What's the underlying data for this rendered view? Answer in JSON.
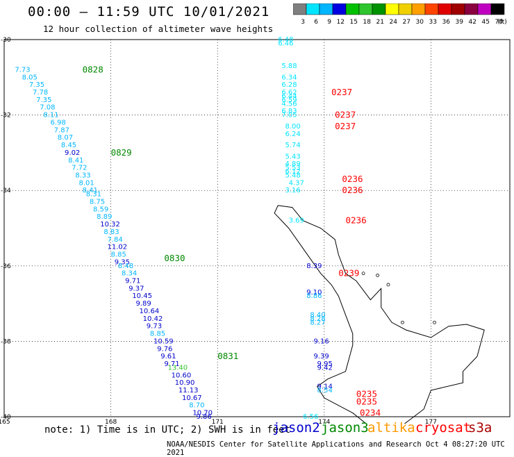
{
  "header": {
    "title": "00:00 – 11:59 UTC 10/01/2021",
    "subtitle": "12 hour collection of altimeter wave heights"
  },
  "colorbar": {
    "unit": "(ft)",
    "labels": [
      "3",
      "6",
      "9",
      "12",
      "15",
      "18",
      "21",
      "24",
      "27",
      "30",
      "33",
      "36",
      "39",
      "42",
      "45",
      "70"
    ],
    "colors": [
      "#7f7f7f",
      "#00e5ff",
      "#00b6ff",
      "#0000e0",
      "#00c000",
      "#2ec52e",
      "#009200",
      "#ffff00",
      "#f0d000",
      "#ffa000",
      "#ff4500",
      "#e00000",
      "#a00000",
      "#8b0040",
      "#c000c0",
      "#000000"
    ]
  },
  "map": {
    "lon_ticks": [
      "165",
      "168",
      "171",
      "174",
      "177"
    ],
    "lat_ticks": [
      "-30",
      "-32",
      "-34",
      "-36",
      "-38",
      "-40"
    ],
    "track_colors": {
      "jason2": "#0000cc",
      "jason3": "#008800",
      "altika": "#ff9900",
      "cryosat": "#ff0000",
      "s3a": "#aa0000"
    }
  },
  "observations": {
    "tracks": [
      {
        "label_color": "#008800",
        "times": [
          {
            "text": "0828",
            "lon": 167.2,
            "lat": -30.8
          },
          {
            "text": "0829",
            "lon": 168.0,
            "lat": -33.0
          },
          {
            "text": "0830",
            "lon": 169.5,
            "lat": -35.8
          },
          {
            "text": "0831",
            "lon": 171.0,
            "lat": -38.4
          }
        ],
        "points": [
          {
            "v": "7.73",
            "lon": 165.3,
            "lat": -30.8,
            "c": "#00b6ff"
          },
          {
            "v": "8.05",
            "lon": 165.5,
            "lat": -31.0,
            "c": "#00b6ff"
          },
          {
            "v": "7.35",
            "lon": 165.7,
            "lat": -31.2,
            "c": "#00b6ff"
          },
          {
            "v": "7.78",
            "lon": 165.8,
            "lat": -31.4,
            "c": "#00b6ff"
          },
          {
            "v": "7.35",
            "lon": 165.9,
            "lat": -31.6,
            "c": "#00b6ff"
          },
          {
            "v": "7.08",
            "lon": 166.0,
            "lat": -31.8,
            "c": "#00b6ff"
          },
          {
            "v": "8.11",
            "lon": 166.1,
            "lat": -32.0,
            "c": "#00b6ff"
          },
          {
            "v": "6.98",
            "lon": 166.3,
            "lat": -32.2,
            "c": "#00b6ff"
          },
          {
            "v": "7.87",
            "lon": 166.4,
            "lat": -32.4,
            "c": "#00b6ff"
          },
          {
            "v": "8.07",
            "lon": 166.5,
            "lat": -32.6,
            "c": "#00b6ff"
          },
          {
            "v": "8.45",
            "lon": 166.6,
            "lat": -32.8,
            "c": "#00b6ff"
          },
          {
            "v": "9.02",
            "lon": 166.7,
            "lat": -33.0,
            "c": "#0000cc"
          },
          {
            "v": "8.41",
            "lon": 166.8,
            "lat": -33.2,
            "c": "#00b6ff"
          },
          {
            "v": "7.72",
            "lon": 166.9,
            "lat": -33.4,
            "c": "#00b6ff"
          },
          {
            "v": "8.33",
            "lon": 167.0,
            "lat": -33.6,
            "c": "#00b6ff"
          },
          {
            "v": "8.01",
            "lon": 167.1,
            "lat": -33.8,
            "c": "#00b6ff"
          },
          {
            "v": "8.41",
            "lon": 167.2,
            "lat": -34.0,
            "c": "#00b6ff"
          },
          {
            "v": "8.31",
            "lon": 167.3,
            "lat": -34.1,
            "c": "#00b6ff"
          },
          {
            "v": "8.75",
            "lon": 167.4,
            "lat": -34.3,
            "c": "#00b6ff"
          },
          {
            "v": "8.59",
            "lon": 167.5,
            "lat": -34.5,
            "c": "#00b6ff"
          },
          {
            "v": "8.89",
            "lon": 167.6,
            "lat": -34.7,
            "c": "#00b6ff"
          },
          {
            "v": "10.32",
            "lon": 167.7,
            "lat": -34.9,
            "c": "#0000cc"
          },
          {
            "v": "8.83",
            "lon": 167.8,
            "lat": -35.1,
            "c": "#00b6ff"
          },
          {
            "v": "7.84",
            "lon": 167.9,
            "lat": -35.3,
            "c": "#00b6ff"
          },
          {
            "v": "11.02",
            "lon": 167.9,
            "lat": -35.5,
            "c": "#0000cc"
          },
          {
            "v": "8.85",
            "lon": 168.0,
            "lat": -35.7,
            "c": "#00b6ff"
          },
          {
            "v": "9.35",
            "lon": 168.1,
            "lat": -35.9,
            "c": "#0000cc"
          },
          {
            "v": "8.48",
            "lon": 168.2,
            "lat": -36.0,
            "c": "#00b6ff"
          },
          {
            "v": "8.34",
            "lon": 168.3,
            "lat": -36.2,
            "c": "#00b6ff"
          },
          {
            "v": "9.71",
            "lon": 168.4,
            "lat": -36.4,
            "c": "#0000cc"
          },
          {
            "v": "9.37",
            "lon": 168.5,
            "lat": -36.6,
            "c": "#0000cc"
          },
          {
            "v": "10.45",
            "lon": 168.6,
            "lat": -36.8,
            "c": "#0000cc"
          },
          {
            "v": "9.89",
            "lon": 168.7,
            "lat": -37.0,
            "c": "#0000cc"
          },
          {
            "v": "10.64",
            "lon": 168.8,
            "lat": -37.2,
            "c": "#0000cc"
          },
          {
            "v": "10.42",
            "lon": 168.9,
            "lat": -37.4,
            "c": "#0000cc"
          },
          {
            "v": "9.73",
            "lon": 169.0,
            "lat": -37.6,
            "c": "#0000cc"
          },
          {
            "v": "8.85",
            "lon": 169.1,
            "lat": -37.8,
            "c": "#00b6ff"
          },
          {
            "v": "10.59",
            "lon": 169.2,
            "lat": -38.0,
            "c": "#0000cc"
          },
          {
            "v": "9.76",
            "lon": 169.3,
            "lat": -38.2,
            "c": "#0000cc"
          },
          {
            "v": "9.61",
            "lon": 169.4,
            "lat": -38.4,
            "c": "#0000cc"
          },
          {
            "v": "9.71",
            "lon": 169.5,
            "lat": -38.6,
            "c": "#0000cc"
          },
          {
            "v": "13.40",
            "lon": 169.6,
            "lat": -38.7,
            "c": "#2ec52e"
          },
          {
            "v": "10.60",
            "lon": 169.7,
            "lat": -38.9,
            "c": "#0000cc"
          },
          {
            "v": "10.90",
            "lon": 169.8,
            "lat": -39.1,
            "c": "#0000cc"
          },
          {
            "v": "11.13",
            "lon": 169.9,
            "lat": -39.3,
            "c": "#0000cc"
          },
          {
            "v": "10.67",
            "lon": 170.0,
            "lat": -39.5,
            "c": "#0000cc"
          },
          {
            "v": "8.70",
            "lon": 170.2,
            "lat": -39.7,
            "c": "#00b6ff"
          },
          {
            "v": "10.70",
            "lon": 170.3,
            "lat": -39.9,
            "c": "#0000cc"
          },
          {
            "v": "9.86",
            "lon": 170.4,
            "lat": -40.0,
            "c": "#0000cc"
          }
        ]
      },
      {
        "label_color": "#ff0000",
        "times": [
          {
            "text": "0237",
            "lon": 174.2,
            "lat": -31.4
          },
          {
            "text": "0237",
            "lon": 174.3,
            "lat": -32.0
          },
          {
            "text": "0237",
            "lon": 174.3,
            "lat": -32.3
          },
          {
            "text": "0236",
            "lon": 174.5,
            "lat": -33.7
          },
          {
            "text": "0236",
            "lon": 174.5,
            "lat": -34.0
          },
          {
            "text": "0236",
            "lon": 174.6,
            "lat": -34.8
          },
          {
            "text": "0235",
            "lon": 174.9,
            "lat": -39.4
          },
          {
            "text": "0235",
            "lon": 174.9,
            "lat": -39.6
          },
          {
            "text": "0234",
            "lon": 175.0,
            "lat": -39.9
          }
        ],
        "points": [
          {
            "v": "6.48",
            "lon": 172.7,
            "lat": -30.0,
            "c": "#00e5ff"
          },
          {
            "v": "6.46",
            "lon": 172.7,
            "lat": -30.1,
            "c": "#00e5ff"
          },
          {
            "v": "5.88",
            "lon": 172.8,
            "lat": -30.7,
            "c": "#00e5ff"
          },
          {
            "v": "6.34",
            "lon": 172.8,
            "lat": -31.0,
            "c": "#00e5ff"
          },
          {
            "v": "6.28",
            "lon": 172.8,
            "lat": -31.2,
            "c": "#00e5ff"
          },
          {
            "v": "6.62",
            "lon": 172.8,
            "lat": -31.4,
            "c": "#00e5ff"
          },
          {
            "v": "6.44",
            "lon": 172.8,
            "lat": -31.5,
            "c": "#00e5ff"
          },
          {
            "v": "6.59",
            "lon": 172.8,
            "lat": -31.6,
            "c": "#00e5ff"
          },
          {
            "v": "4.56",
            "lon": 172.8,
            "lat": -31.7,
            "c": "#00e5ff"
          },
          {
            "v": "6.83",
            "lon": 172.8,
            "lat": -31.9,
            "c": "#00e5ff"
          },
          {
            "v": "7.05",
            "lon": 172.8,
            "lat": -32.0,
            "c": "#00e5ff"
          },
          {
            "v": "8.00",
            "lon": 172.9,
            "lat": -32.3,
            "c": "#00e5ff"
          },
          {
            "v": "6.24",
            "lon": 172.9,
            "lat": -32.5,
            "c": "#00e5ff"
          },
          {
            "v": "5.74",
            "lon": 172.9,
            "lat": -32.8,
            "c": "#00e5ff"
          },
          {
            "v": "5.43",
            "lon": 172.9,
            "lat": -33.1,
            "c": "#00e5ff"
          },
          {
            "v": "4.89",
            "lon": 172.9,
            "lat": -33.3,
            "c": "#00e5ff"
          },
          {
            "v": "5.53",
            "lon": 172.9,
            "lat": -33.4,
            "c": "#00e5ff"
          },
          {
            "v": "6.12",
            "lon": 172.9,
            "lat": -33.5,
            "c": "#00e5ff"
          },
          {
            "v": "5.48",
            "lon": 172.9,
            "lat": -33.6,
            "c": "#00e5ff"
          },
          {
            "v": "4.37",
            "lon": 173.0,
            "lat": -33.8,
            "c": "#00e5ff"
          },
          {
            "v": "3.16",
            "lon": 172.9,
            "lat": -34.0,
            "c": "#00e5ff"
          },
          {
            "v": "3.69",
            "lon": 173.0,
            "lat": -34.8,
            "c": "#00e5ff"
          },
          {
            "v": "8.39",
            "lon": 173.5,
            "lat": -36.0,
            "c": "#0000cc"
          },
          {
            "v": "9.10",
            "lon": 173.5,
            "lat": -36.7,
            "c": "#0000cc"
          },
          {
            "v": "8.86",
            "lon": 173.5,
            "lat": -36.8,
            "c": "#00b6ff"
          },
          {
            "v": "8.40",
            "lon": 173.6,
            "lat": -37.3,
            "c": "#00b6ff"
          },
          {
            "v": "8.28",
            "lon": 173.6,
            "lat": -37.4,
            "c": "#00b6ff"
          },
          {
            "v": "8.27",
            "lon": 173.6,
            "lat": -37.5,
            "c": "#00b6ff"
          },
          {
            "v": "9.16",
            "lon": 173.7,
            "lat": -38.0,
            "c": "#0000cc"
          },
          {
            "v": "9.39",
            "lon": 173.7,
            "lat": -38.4,
            "c": "#0000cc"
          },
          {
            "v": "9.95",
            "lon": 173.8,
            "lat": -38.6,
            "c": "#0000cc"
          },
          {
            "v": "9.42",
            "lon": 173.8,
            "lat": -38.7,
            "c": "#0000cc"
          },
          {
            "v": "9.14",
            "lon": 173.8,
            "lat": -39.2,
            "c": "#0000cc"
          },
          {
            "v": "8.54",
            "lon": 173.8,
            "lat": -39.3,
            "c": "#00b6ff"
          },
          {
            "v": "6.56",
            "lon": 173.4,
            "lat": -40.0,
            "c": "#00e5ff"
          }
        ]
      },
      {
        "label_color": "#ff0000",
        "times": [
          {
            "text": "0239",
            "lon": 174.4,
            "lat": -36.2
          }
        ],
        "points": []
      }
    ]
  },
  "footer": {
    "note": "note: 1) Time is in UTC; 2) SWH is in feet",
    "credit": "NOAA/NESDIS Center for Satellite Applications and Research   Oct  4 08:27:20 UTC 2021",
    "satellites": [
      {
        "name": "jason2",
        "color": "#0000cc"
      },
      {
        "name": "jason3",
        "color": "#008800"
      },
      {
        "name": "altika",
        "color": "#ff9900"
      },
      {
        "name": "cryosat",
        "color": "#ff0000"
      },
      {
        "name": "s3a",
        "color": "#aa0000"
      }
    ]
  }
}
